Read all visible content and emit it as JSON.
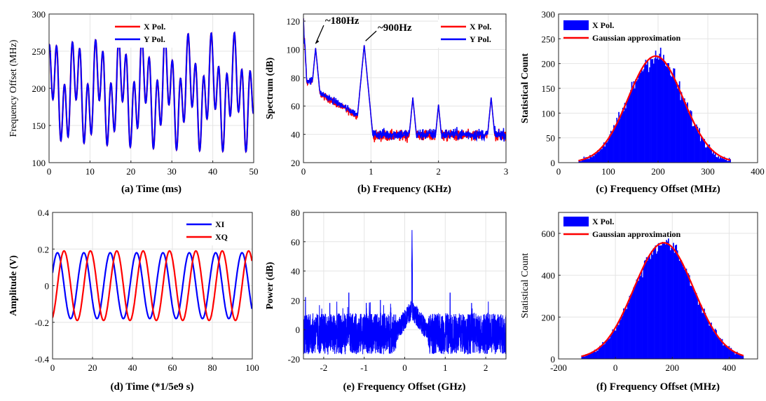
{
  "chart_data": [
    {
      "id": "a",
      "type": "line",
      "caption_letter": "(a)",
      "xlabel": "Time (ms)",
      "ylabel": "Frequency Offset (MHz)",
      "xlim": [
        0,
        50
      ],
      "ylim": [
        100,
        300
      ],
      "xticks": [
        "0",
        "10",
        "20",
        "30",
        "40",
        "50"
      ],
      "yticks": [
        "300",
        "250",
        "200",
        "150",
        "100"
      ],
      "grid": true,
      "legend_position": "top-center",
      "series": [
        {
          "name": "X Pol.",
          "color": "#ff0000",
          "signal": {
            "center": 195,
            "components": [
              {
                "amp": 45,
                "freq_per_ms": 0.53
              },
              {
                "amp": 35,
                "freq_per_ms": 0.18
              }
            ]
          }
        },
        {
          "name": "Y Pol.",
          "color": "#0000ff",
          "signal": {
            "center": 195,
            "components": [
              {
                "amp": 45,
                "freq_per_ms": 0.53
              },
              {
                "amp": 35,
                "freq_per_ms": 0.18
              }
            ]
          }
        }
      ]
    },
    {
      "id": "b",
      "type": "line",
      "caption_letter": "(b)",
      "xlabel": "Frequency (KHz)",
      "ylabel": "Spectrum (dB)",
      "xlim": [
        0,
        3
      ],
      "ylim": [
        20,
        125
      ],
      "xticks": [
        "0",
        "1",
        "2",
        "3"
      ],
      "yticks": [
        "120",
        "100",
        "80",
        "60",
        "40",
        "20"
      ],
      "grid": true,
      "legend_position": "top-right",
      "peaks": [
        {
          "x": 0.18,
          "y": 101
        },
        {
          "x": 0.9,
          "y": 103
        },
        {
          "x": 1.62,
          "y": 66
        },
        {
          "x": 2.0,
          "y": 61
        },
        {
          "x": 2.78,
          "y": 66
        }
      ],
      "annotations": [
        "~180Hz",
        "~900Hz"
      ],
      "series": [
        {
          "name": "X Pol.",
          "color": "#ff0000"
        },
        {
          "name": "Y Pol.",
          "color": "#0000ff"
        }
      ]
    },
    {
      "id": "c",
      "type": "bar",
      "caption_letter": "(c)",
      "xlabel": "Frequency Offset (MHz)",
      "ylabel": "Statistical Count",
      "xlim": [
        0,
        400
      ],
      "ylim": [
        0,
        300
      ],
      "xticks": [
        "0",
        "100",
        "200",
        "300",
        "400"
      ],
      "yticks": [
        "300",
        "250",
        "200",
        "150",
        "100",
        "50",
        "0"
      ],
      "grid": true,
      "legend_position": "top-left",
      "gaussian": {
        "mean": 195,
        "sigma": 55,
        "peak": 215,
        "range": [
          40,
          345
        ]
      },
      "series": [
        {
          "name": "X Pol.",
          "color": "#0000ff"
        },
        {
          "name": "Gaussian approximation",
          "color": "#ff0000"
        }
      ]
    },
    {
      "id": "d",
      "type": "line",
      "caption_letter": "(d)",
      "xlabel": "Time (*1/5e9 s)",
      "ylabel": "Amplitude (V)",
      "xlim": [
        0,
        100
      ],
      "ylim": [
        -0.4,
        0.4
      ],
      "xticks": [
        "0",
        "20",
        "40",
        "60",
        "80",
        "100"
      ],
      "yticks": [
        "0.4",
        "0.2",
        "0",
        "-0.2",
        "-0.4"
      ],
      "grid": true,
      "legend_position": "top-right",
      "series": [
        {
          "name": "XI",
          "color": "#0000ff",
          "amp": 0.18,
          "period": 13.2,
          "phase_x": 0
        },
        {
          "name": "XQ",
          "color": "#ff0000",
          "amp": 0.19,
          "period": 13.2,
          "phase_x": 3.3
        }
      ]
    },
    {
      "id": "e",
      "type": "line",
      "caption_letter": "(e)",
      "xlabel": "Frequency Offset (GHz)",
      "ylabel": "Power (dB)",
      "xlim": [
        -2.5,
        2.5
      ],
      "ylim": [
        -20,
        80
      ],
      "xticks": [
        "-2",
        "-1",
        "0",
        "1",
        "2"
      ],
      "yticks": [
        "80",
        "60",
        "40",
        "20",
        "0",
        "-20"
      ],
      "grid": true,
      "main_peak": {
        "x": 0.18,
        "y": 68
      },
      "spurs": [
        {
          "x": -2.45,
          "y": 22
        },
        {
          "x": -1.85,
          "y": 18
        },
        {
          "x": -1.38,
          "y": 25
        },
        {
          "x": -0.95,
          "y": 18
        },
        {
          "x": -0.6,
          "y": 20
        },
        {
          "x": 1.12,
          "y": 25
        },
        {
          "x": 1.65,
          "y": 18
        }
      ],
      "series": [
        {
          "color": "#0000ff"
        }
      ]
    },
    {
      "id": "f",
      "type": "bar",
      "caption_letter": "(f)",
      "xlabel": "Frequency Offset (MHz)",
      "ylabel": "Statistical Count",
      "xlim": [
        -200,
        500
      ],
      "ylim": [
        0,
        700
      ],
      "xticks": [
        "-200",
        "0",
        "200",
        "400"
      ],
      "yticks": [
        "600",
        "400",
        "200",
        "0"
      ],
      "grid": true,
      "legend_position": "top-left",
      "gaussian": {
        "mean": 170,
        "sigma": 105,
        "peak": 555,
        "range": [
          -120,
          450
        ]
      },
      "series": [
        {
          "name": "X Pol.",
          "color": "#0000ff"
        },
        {
          "name": "Gaussian approximation",
          "color": "#ff0000"
        }
      ]
    }
  ]
}
